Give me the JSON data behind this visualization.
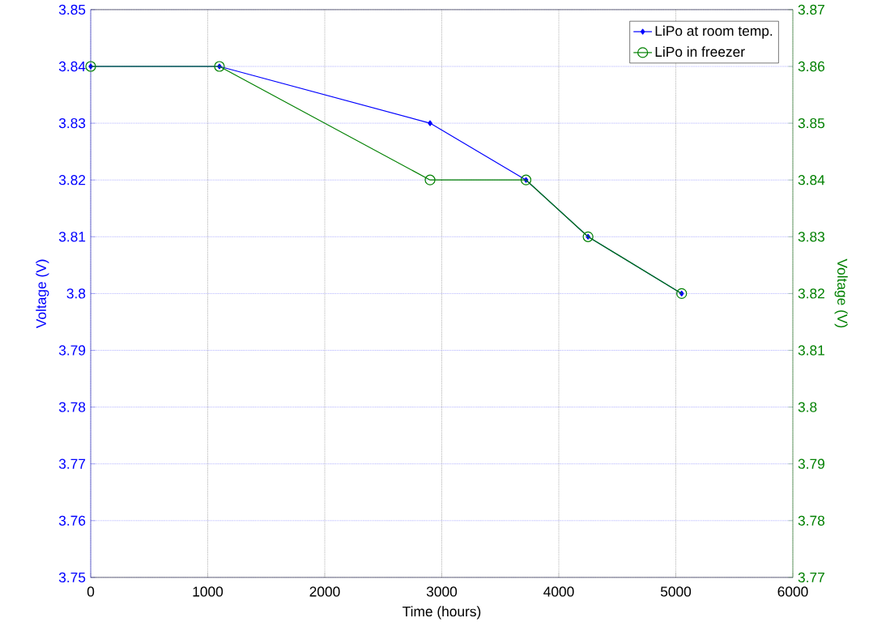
{
  "chart_data": {
    "type": "line",
    "xlabel": "Time (hours)",
    "ylabel": "Voltage (V)",
    "y2label": "Voltage (V)",
    "xlim": [
      0,
      6000
    ],
    "xticks": [
      0,
      1000,
      2000,
      3000,
      4000,
      5000,
      6000
    ],
    "ylim": [
      3.75,
      3.85
    ],
    "yticks": [
      3.75,
      3.76,
      3.77,
      3.78,
      3.79,
      3.8,
      3.81,
      3.82,
      3.83,
      3.84,
      3.85
    ],
    "y2lim": [
      3.77,
      3.87
    ],
    "y2ticks": [
      3.77,
      3.78,
      3.79,
      3.8,
      3.81,
      3.82,
      3.83,
      3.84,
      3.85,
      3.86,
      3.87
    ],
    "grid": true,
    "legend": "top right",
    "line_style": "solid",
    "x": [
      0,
      1100,
      2900,
      3720,
      4250,
      5050
    ],
    "series": [
      {
        "name": "LiPo at room temp.",
        "color": "#0000ff",
        "marker": "diamond",
        "values": [
          3.84,
          3.84,
          3.83,
          3.82,
          3.81,
          3.8
        ]
      },
      {
        "name": "LiPo in freezer",
        "color": "#008000",
        "marker": "circle",
        "axis": "y2",
        "values": [
          3.86,
          3.86,
          3.84,
          3.84,
          3.83,
          3.82
        ]
      }
    ]
  }
}
